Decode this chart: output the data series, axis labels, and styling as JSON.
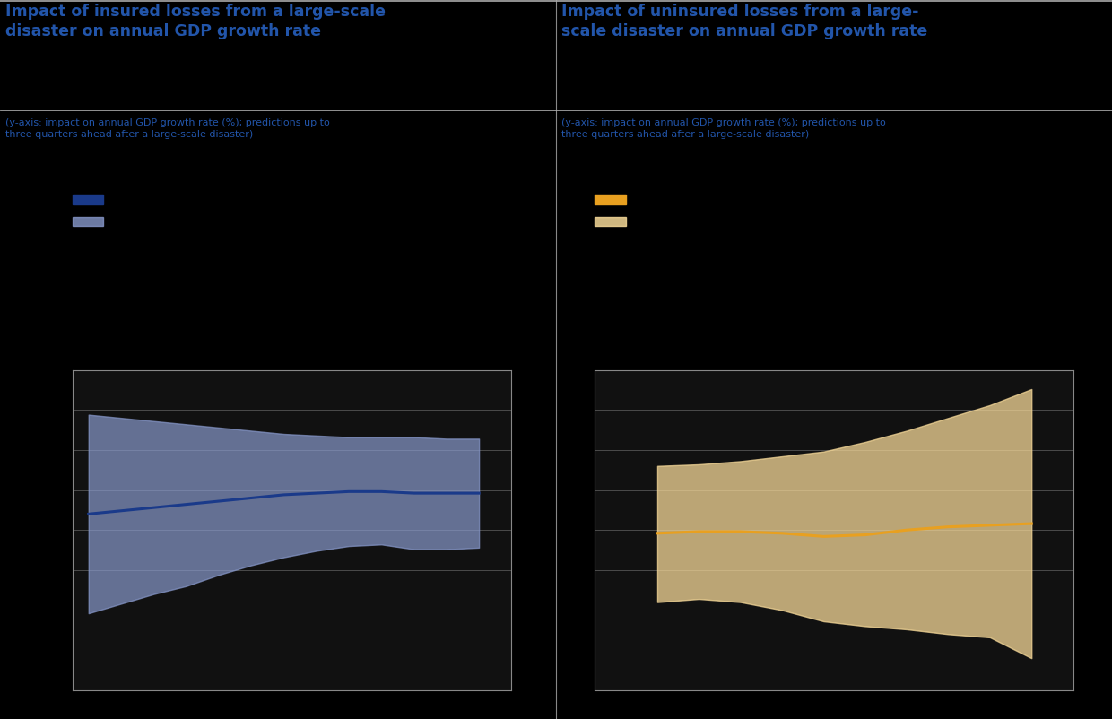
{
  "title_left": "Impact of insured losses from a large-scale\ndisaster on annual GDP growth rate",
  "title_right": "Impact of uninsured losses from a large-\nscale disaster on annual GDP growth rate",
  "subtitle": "(y-axis: impact on annual GDP growth rate (%); predictions up to\nthree quarters ahead after a large-scale disaster)",
  "background_color": "#000000",
  "panel_bg": "#111111",
  "title_color": "#2255AA",
  "subtitle_color": "#2255AA",
  "left_line_color": "#1A3A8A",
  "left_band_color": "#8899CC",
  "right_line_color": "#E8A020",
  "right_band_color": "#F5D898",
  "grid_color": "#555555",
  "border_color": "#888888",
  "divider_color": "#888888",
  "x_left": [
    0,
    1,
    2,
    3,
    4,
    5,
    6,
    7,
    8,
    9,
    10,
    11,
    12
  ],
  "left_line": [
    -0.4,
    -0.38,
    -0.36,
    -0.34,
    -0.32,
    -0.3,
    -0.28,
    -0.27,
    -0.26,
    -0.26,
    -0.27,
    -0.27,
    -0.27
  ],
  "left_upper": [
    0.22,
    0.2,
    0.18,
    0.16,
    0.14,
    0.12,
    0.1,
    0.09,
    0.08,
    0.08,
    0.08,
    0.07,
    0.07
  ],
  "left_lower": [
    -1.02,
    -0.96,
    -0.9,
    -0.85,
    -0.78,
    -0.72,
    -0.67,
    -0.63,
    -0.6,
    -0.59,
    -0.62,
    -0.62,
    -0.61
  ],
  "x_right": [
    3,
    4,
    5,
    6,
    7,
    8,
    9,
    10,
    11,
    12
  ],
  "right_line": [
    -0.52,
    -0.51,
    -0.51,
    -0.52,
    -0.54,
    -0.53,
    -0.5,
    -0.48,
    -0.47,
    -0.46
  ],
  "right_upper": [
    -0.1,
    -0.09,
    -0.07,
    -0.04,
    -0.01,
    0.05,
    0.12,
    0.2,
    0.28,
    0.38
  ],
  "right_lower": [
    -0.95,
    -0.93,
    -0.95,
    -1.0,
    -1.07,
    -1.1,
    -1.12,
    -1.15,
    -1.17,
    -1.3
  ],
  "xlim_left": [
    -0.5,
    13.0
  ],
  "xlim_right": [
    1.5,
    13.0
  ],
  "ylim": [
    -1.5,
    0.5
  ],
  "ytick_positions": [
    -1.25,
    -1.0,
    -0.75,
    -0.5,
    -0.25,
    0.0,
    0.25
  ],
  "hline_positions": [
    -1.0,
    -0.75,
    -0.5,
    -0.25,
    0.0,
    0.25
  ]
}
